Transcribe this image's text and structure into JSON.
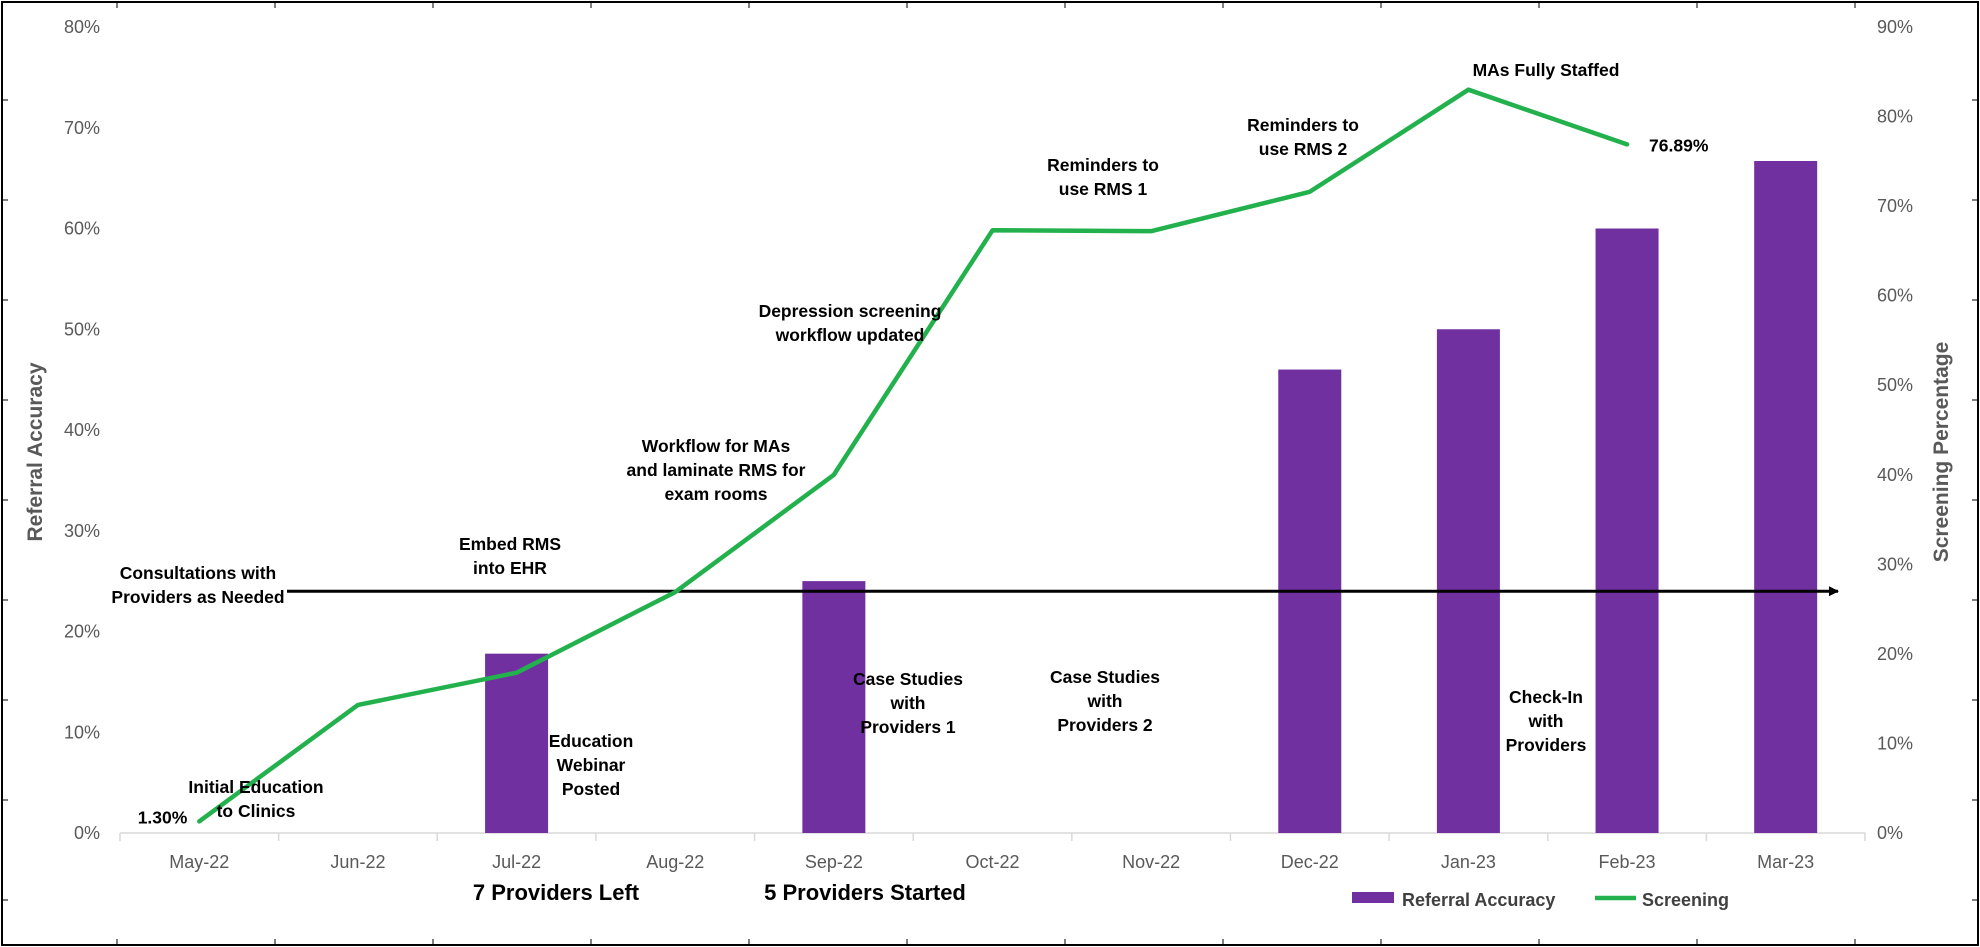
{
  "chart_data": {
    "type": "bar",
    "categories": [
      "May-22",
      "Jun-22",
      "Jul-22",
      "Aug-22",
      "Sep-22",
      "Oct-22",
      "Nov-22",
      "Dec-22",
      "Jan-23",
      "Feb-23",
      "Mar-23"
    ],
    "ylabel": "Referral Accuracy",
    "y2label": "Screening Percentage",
    "ylim": [
      0,
      80
    ],
    "y2lim": [
      0,
      90
    ],
    "yticks": [
      "0%",
      "10%",
      "20%",
      "30%",
      "40%",
      "50%",
      "60%",
      "70%",
      "80%"
    ],
    "y2ticks": [
      "0%",
      "10%",
      "20%",
      "30%",
      "40%",
      "50%",
      "60%",
      "70%",
      "80%",
      "90%"
    ],
    "series": [
      {
        "name": "Referral Accuracy",
        "type": "bar",
        "axis": "left",
        "color": "#7030A0",
        "values": [
          null,
          null,
          17.8,
          null,
          25,
          null,
          null,
          46,
          50,
          60,
          66.7
        ]
      },
      {
        "name": "Screening",
        "type": "line",
        "axis": "right",
        "color": "#22B14C",
        "values": [
          1.3,
          14.3,
          17.9,
          26.9,
          40,
          67.3,
          67.2,
          71.6,
          83,
          76.89,
          null
        ]
      }
    ],
    "data_labels": {
      "first": "1.30%",
      "last": "76.89%"
    },
    "legend": {
      "position": "bottom-right",
      "items": [
        "Referral Accuracy",
        "Screening"
      ]
    },
    "grid": false,
    "arrow": {
      "label_lines": [
        "Consultations with",
        "Providers as Needed"
      ],
      "y2_value": 27
    }
  },
  "annotations": [
    {
      "id": "initial-education",
      "lines": [
        "Initial Education",
        "to Clinics"
      ]
    },
    {
      "id": "education-webinar",
      "lines": [
        "Education",
        "Webinar",
        "Posted"
      ]
    },
    {
      "id": "embed-rms",
      "lines": [
        "Embed RMS",
        "into EHR"
      ]
    },
    {
      "id": "workflow-mas",
      "lines": [
        "Workflow for MAs",
        "and laminate RMS for",
        "exam rooms"
      ]
    },
    {
      "id": "depression-screening",
      "lines": [
        "Depression screening",
        "workflow updated"
      ]
    },
    {
      "id": "case-studies-1",
      "lines": [
        "Case Studies",
        "with",
        "Providers 1"
      ]
    },
    {
      "id": "reminders-1",
      "lines": [
        "Reminders to",
        "use RMS 1"
      ]
    },
    {
      "id": "case-studies-2",
      "lines": [
        "Case Studies",
        "with",
        "Providers 2"
      ]
    },
    {
      "id": "reminders-2",
      "lines": [
        "Reminders to",
        "use RMS 2"
      ]
    },
    {
      "id": "mas-fully-staffed",
      "lines": [
        "MAs Fully Staffed"
      ]
    },
    {
      "id": "check-in",
      "lines": [
        "Check-In",
        "with",
        "Providers"
      ]
    }
  ],
  "notes": {
    "providers_left": "7 Providers Left",
    "providers_started": "5 Providers Started"
  },
  "colors": {
    "bar": "#7030A0",
    "line": "#22B14C",
    "arrow": "#000000",
    "axis": "#D9D9D9",
    "frame": "#000000"
  }
}
